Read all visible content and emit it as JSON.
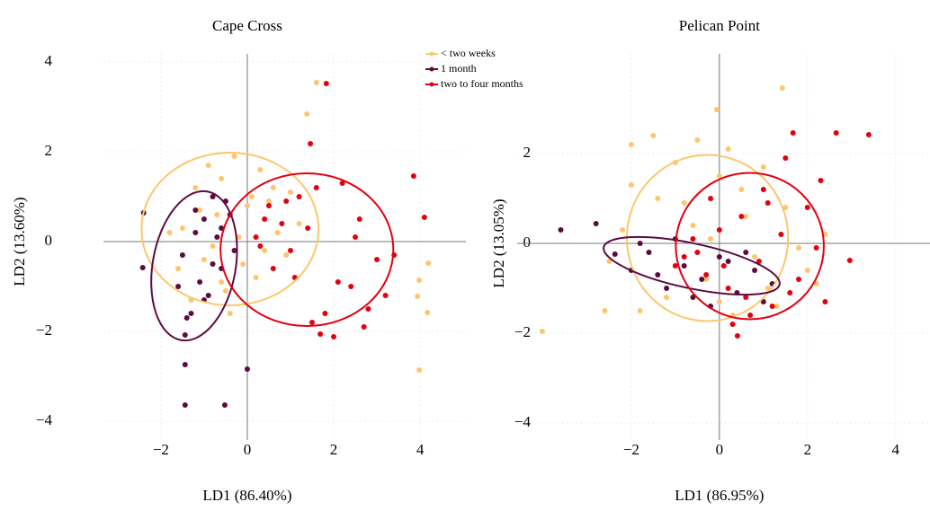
{
  "chart_data": [
    {
      "type": "scatter",
      "title": "Cape Cross",
      "x_label": "LD1 (86.40%)",
      "y_label": "LD2 (13.60%)",
      "xlim": [
        -3.33,
        5.06
      ],
      "ylim": [
        -4.42,
        4.18
      ],
      "xticks": [
        {
          "value": -2,
          "label": "−2"
        },
        0,
        2,
        4
      ],
      "yticks": [
        {
          "value": -4,
          "label": "−4"
        },
        {
          "value": -2,
          "label": "−2"
        },
        0,
        2,
        4
      ],
      "grid": true,
      "legend": "upper right",
      "series": [
        {
          "name": "< two weeks",
          "color": "#fdc66e",
          "x": [
            -1.2,
            -0.9,
            -0.6,
            -0.3,
            0.0,
            0.3,
            0.6,
            -1.5,
            -1.8,
            -1.0,
            -0.5,
            0.2,
            0.9,
            1.2,
            -0.7,
            -1.3,
            -0.2,
            0.5,
            1.38,
            1.6,
            3.98,
            4.19,
            3.98,
            3.94,
            4.17,
            -0.1,
            -0.8,
            0.1,
            -1.6,
            -0.4,
            0.7,
            -1.1,
            1.0,
            -0.6,
            0.4
          ],
          "values": [
            1.2,
            1.7,
            1.4,
            1.9,
            0.8,
            1.6,
            1.2,
            0.3,
            0.2,
            -0.4,
            -1.1,
            -0.8,
            -0.3,
            0.4,
            0.6,
            -1.3,
            0.1,
            0.9,
            2.84,
            3.54,
            -2.86,
            -0.48,
            -0.86,
            -1.22,
            -1.58,
            -0.5,
            -0.1,
            1.0,
            -0.6,
            -1.6,
            0.2,
            0.7,
            1.1,
            -0.9,
            -0.2
          ],
          "ellipse": {
            "cx": -0.4,
            "cy": 0.28,
            "rx": 2.05,
            "ry": 1.7,
            "angle": 0
          }
        },
        {
          "name": "1 month",
          "color": "#5c0a3f",
          "x": [
            -1.44,
            -0.52,
            -1.44,
            0.0,
            -1.44,
            -2.4,
            -2.42,
            -1.0,
            -0.8,
            -1.2,
            -1.5,
            -0.6,
            -0.9,
            -1.3,
            -0.4,
            -1.1,
            -0.7,
            -1.6,
            -0.3,
            -1.0,
            -0.5,
            -1.2,
            -0.8,
            -1.4,
            -0.6
          ],
          "values": [
            -3.64,
            -3.64,
            -2.74,
            -2.84,
            -2.08,
            0.64,
            -0.58,
            0.5,
            1.0,
            0.2,
            -0.3,
            -0.6,
            -1.2,
            -1.6,
            0.6,
            -0.9,
            0.1,
            -1.0,
            -0.2,
            -1.3,
            0.9,
            0.7,
            -0.5,
            -1.7,
            0.3
          ],
          "ellipse": {
            "cx": -1.23,
            "cy": -0.54,
            "rx": 0.96,
            "ry": 1.68,
            "angle": -10
          }
        },
        {
          "name": "two to four months",
          "color": "#e3000f",
          "x": [
            1.83,
            1.46,
            3.85,
            4.1,
            2.0,
            1.69,
            0.4,
            0.8,
            1.2,
            1.6,
            2.2,
            2.6,
            3.0,
            0.6,
            1.0,
            1.4,
            2.4,
            2.8,
            3.2,
            0.2,
            0.9,
            1.8,
            2.1,
            2.5,
            1.1,
            0.5,
            3.4,
            1.5,
            2.7,
            0.3
          ],
          "values": [
            3.52,
            2.18,
            1.46,
            0.54,
            -2.12,
            -2.06,
            0.5,
            0.4,
            1.0,
            1.2,
            1.3,
            0.5,
            -0.4,
            -0.6,
            -0.2,
            0.3,
            -1.0,
            -1.5,
            -1.2,
            0.1,
            0.9,
            -1.6,
            -0.9,
            0.1,
            -0.8,
            0.8,
            -0.3,
            -1.8,
            -1.9,
            -0.1
          ],
          "ellipse": {
            "cx": 1.38,
            "cy": -0.18,
            "rx": 2.0,
            "ry": 1.7,
            "angle": 0
          }
        }
      ]
    },
    {
      "type": "scatter",
      "title": "Pelican Point",
      "x_label": "LD1 (86.95%)",
      "y_label": "LD2 (13.05%)",
      "xlim": [
        -4.59,
        4.78
      ],
      "ylim": [
        -4.38,
        4.22
      ],
      "xticks": [
        {
          "value": -2,
          "label": "−2"
        },
        0,
        2,
        4
      ],
      "yticks": [
        {
          "value": -4,
          "label": "−4"
        },
        {
          "value": -2,
          "label": "−2"
        },
        0,
        2
      ],
      "grid": true,
      "series": [
        {
          "color": "#fdc66e",
          "x": [
            1.43,
            -0.06,
            -4.02,
            -2.5,
            -2.0,
            -1.5,
            -1.0,
            -0.5,
            0.0,
            0.5,
            1.0,
            1.5,
            2.0,
            -2.2,
            -1.8,
            -1.2,
            -0.8,
            -0.3,
            0.3,
            0.8,
            1.3,
            1.8,
            -1.4,
            -0.6,
            0.2,
            -2.6,
            2.2,
            -1.0,
            0.6,
            -2.0,
            -0.2,
            1.1,
            -1.6,
            0.0,
            2.4
          ],
          "values": [
            3.46,
            2.98,
            -1.96,
            -0.4,
            2.2,
            2.4,
            1.8,
            2.3,
            1.5,
            1.2,
            1.7,
            0.8,
            -0.6,
            0.3,
            -1.5,
            -1.2,
            0.9,
            -0.8,
            -1.6,
            -0.3,
            -1.4,
            -0.1,
            1.0,
            0.4,
            2.1,
            -1.5,
            -0.9,
            -0.5,
            0.6,
            1.3,
            0.1,
            -1.0,
            -0.2,
            -1.3,
            0.2
          ],
          "ellipse": {
            "cx": -0.27,
            "cy": 0.12,
            "rx": 1.83,
            "ry": 1.85,
            "angle": 0
          }
        },
        {
          "color": "#5c0a3f",
          "x": [
            -3.6,
            -2.8,
            -2.37,
            -2.0,
            -1.6,
            -1.2,
            -0.8,
            -0.4,
            0.0,
            0.4,
            0.8,
            1.2,
            -1.8,
            -1.0,
            -0.2,
            0.6,
            -1.4,
            -0.6,
            0.2,
            1.0
          ],
          "values": [
            0.3,
            0.44,
            -0.24,
            -0.6,
            -0.2,
            -1.0,
            -0.5,
            -0.8,
            -0.3,
            -1.1,
            -0.6,
            -0.9,
            0.0,
            0.1,
            -1.4,
            -0.2,
            -0.7,
            -1.2,
            -0.4,
            -1.3
          ],
          "ellipse": {
            "cx": -0.63,
            "cy": -0.5,
            "rx": 2.04,
            "ry": 0.5,
            "angle": -12
          }
        },
        {
          "color": "#e3000f",
          "x": [
            3.39,
            2.65,
            1.67,
            2.96,
            0.41,
            2.3,
            2.0,
            1.5,
            1.0,
            0.5,
            0.0,
            -0.5,
            -1.0,
            1.8,
            1.2,
            0.7,
            0.2,
            -0.3,
            2.4,
            1.4,
            0.9,
            -0.6,
            0.3,
            1.1,
            2.2,
            -0.2,
            0.6,
            1.6,
            0.1,
            -0.8
          ],
          "values": [
            2.42,
            2.46,
            2.46,
            -0.38,
            -2.06,
            1.4,
            0.8,
            1.9,
            1.2,
            0.6,
            0.3,
            -0.2,
            -0.5,
            -0.8,
            -1.4,
            -1.6,
            -1.0,
            -0.7,
            -1.3,
            0.2,
            -0.4,
            0.1,
            -1.8,
            0.9,
            -0.1,
            1.0,
            -1.2,
            -1.1,
            -0.5,
            -0.3
          ],
          "ellipse": {
            "cx": 0.69,
            "cy": -0.06,
            "rx": 1.68,
            "ry": 1.63,
            "angle": 0
          }
        }
      ]
    }
  ]
}
